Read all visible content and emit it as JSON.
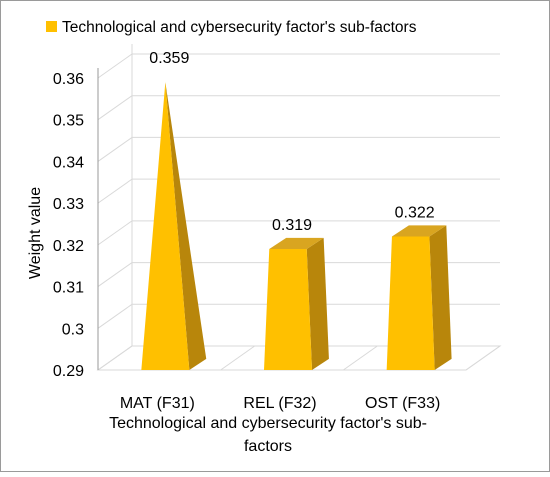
{
  "chart_data": {
    "type": "bar",
    "title": "",
    "xlabel": "Technological and cybersecurity factor's sub-factors",
    "xlabel_lines": [
      "Technological and cybersecurity factor's sub-",
      "factors"
    ],
    "ylabel": "Weight value",
    "legend": {
      "label": "Technological and cybersecurity factor's sub-factors",
      "position": "top"
    },
    "categories": [
      "MAT (F31)",
      "REL (F32)",
      "OST (F33)"
    ],
    "series": [
      {
        "name": "Technological and cybersecurity factor's sub-factors",
        "values": [
          0.359,
          0.319,
          0.322
        ]
      }
    ],
    "data_labels": [
      "0.359",
      "0.319",
      "0.322"
    ],
    "ylim": [
      0.29,
      0.36
    ],
    "yticks": [
      "0.29",
      "0.3",
      "0.31",
      "0.32",
      "0.33",
      "0.34",
      "0.35",
      "0.36"
    ],
    "grid": true,
    "style": "3d-pyramid",
    "colors": {
      "bar_front": "#FFC000",
      "bar_side": "#B8860B",
      "bar_top": "#D9A520",
      "grid": "#d9d9d9",
      "frame": "#9a9a9a"
    }
  }
}
